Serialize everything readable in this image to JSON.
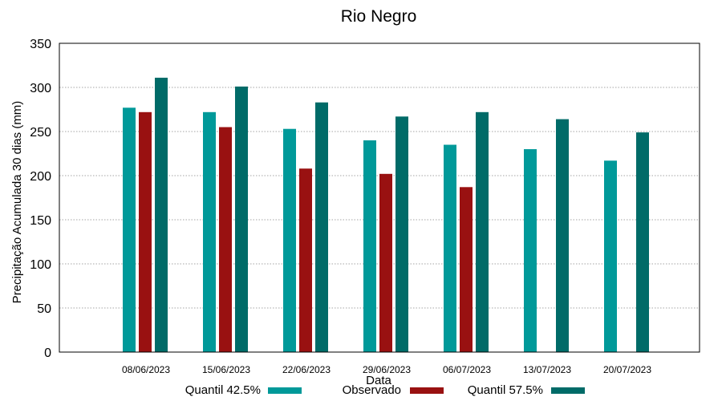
{
  "chart_data": {
    "type": "bar",
    "title": "Rio Negro",
    "xlabel": "Data",
    "ylabel": "Precipitação Acumulada 30 dias (mm)",
    "ylim": [
      0,
      350
    ],
    "yticks": [
      0,
      50,
      100,
      150,
      200,
      250,
      300,
      350
    ],
    "grid": true,
    "legend_position": "bottom",
    "categories": [
      "08/06/2023",
      "15/06/2023",
      "22/06/2023",
      "29/06/2023",
      "06/07/2023",
      "13/07/2023",
      "20/07/2023"
    ],
    "series": [
      {
        "name": "Quantil 42.5%",
        "color": "#009999",
        "values": [
          277,
          272,
          253,
          240,
          235,
          230,
          217
        ]
      },
      {
        "name": "Observado",
        "color": "#991111",
        "values": [
          272,
          255,
          208,
          202,
          187,
          null,
          null
        ]
      },
      {
        "name": "Quantil 57.5%",
        "color": "#006b68",
        "values": [
          311,
          301,
          283,
          267,
          272,
          264,
          249
        ]
      }
    ]
  }
}
